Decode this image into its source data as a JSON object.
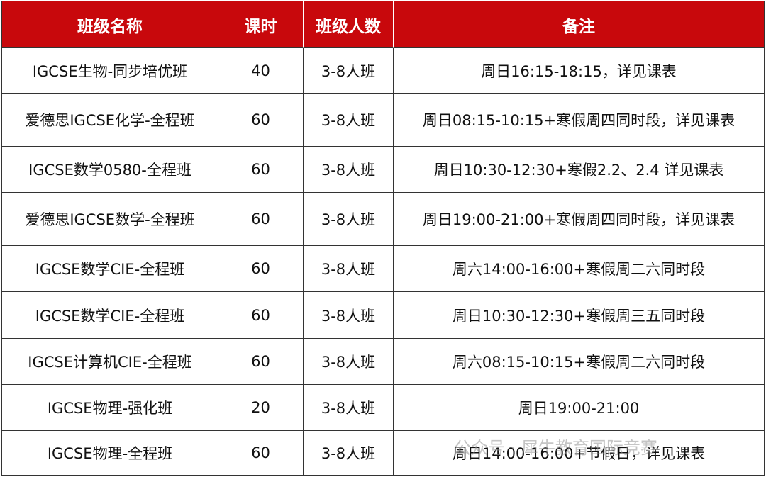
{
  "table": {
    "header": [
      "班级名称",
      "课时",
      "班级人数",
      "备注"
    ],
    "rows": [
      [
        "IGCSE生物-同步培优班",
        40,
        "3-8人班",
        "周日16:15-18:15，详见课表"
      ],
      [
        "爱德思IGCSE化学-全程班",
        60,
        "3-8人班",
        "周日08:15-10:15+寒假周四同时段，详见课表"
      ],
      [
        "IGCSE数学0580-全程班",
        60,
        "3-8人班",
        "周日10:30-12:30+寒假2.2、2.4 详见课表"
      ],
      [
        "爱德思IGCSE数学-全程班",
        60,
        "3-8人班",
        "周日19:00-21:00+寒假周四同时段，详见课表"
      ],
      [
        "IGCSE数学CIE-全程班",
        60,
        "3-8人班",
        "周六14:00-16:00+寒假周二六同时段"
      ],
      [
        "IGCSE数学CIE-全程班",
        60,
        "3-8人班",
        "周日10:30-12:30+寒假周三五同时段"
      ],
      [
        "IGCSE计算机CIE-全程班",
        60,
        "3-8人班",
        "周六08:15-10:15+寒假周二六同时段"
      ],
      [
        "IGCSE物理-强化班",
        20,
        "3-8人班",
        "周日19:00-21:00"
      ],
      [
        "IGCSE物理-全程班",
        60,
        "3-8人班",
        "周日14:00-16:00+节假日，详见课表"
      ]
    ]
  },
  "watermark": "公众号 · 犀牛教育国际竞赛"
}
